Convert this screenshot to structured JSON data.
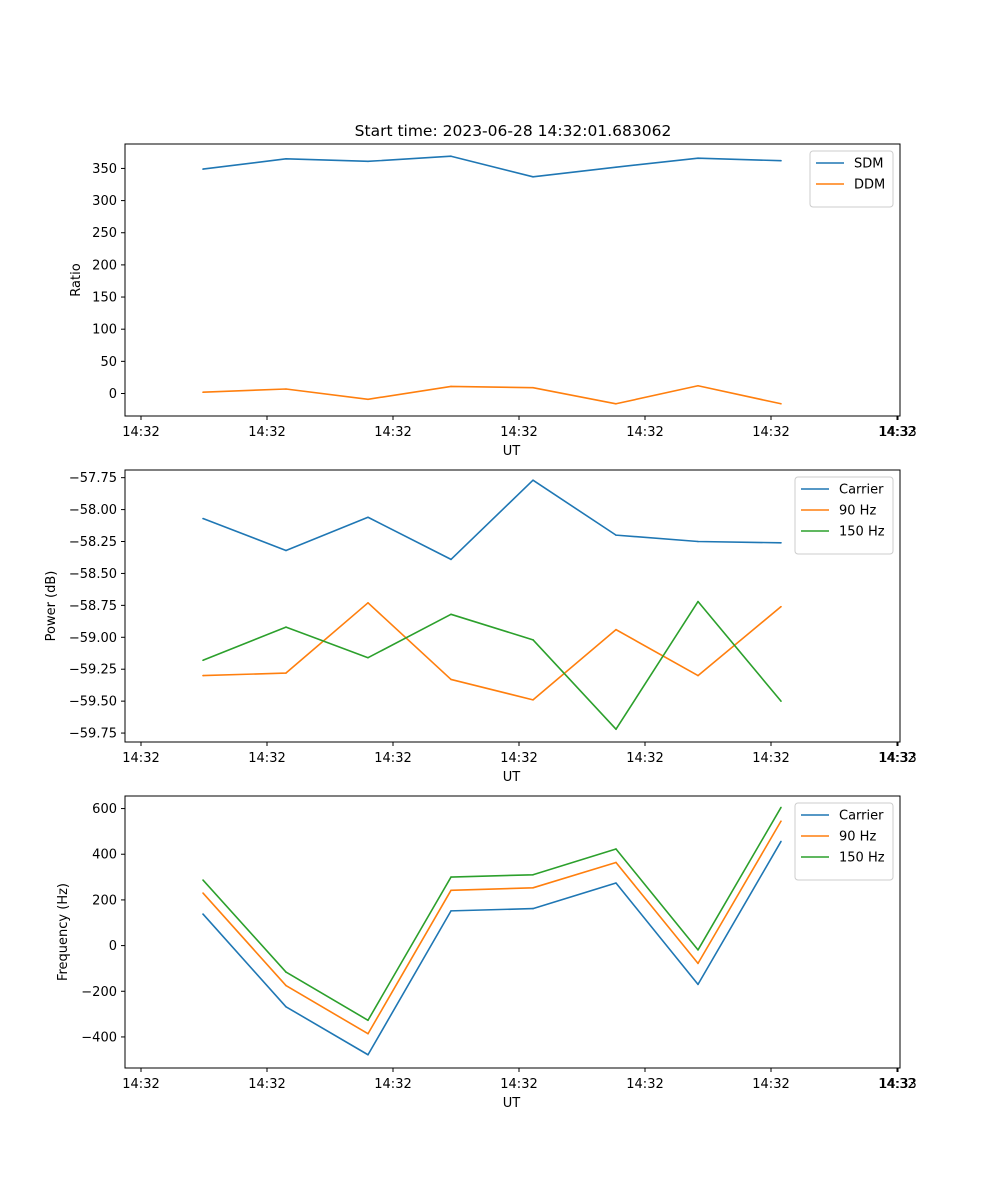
{
  "figure": {
    "title": "Start time: 2023-06-28 14:32:01.683062"
  },
  "chart_data": [
    {
      "type": "line",
      "xlabel": "UT",
      "ylabel": "Ratio",
      "x_tick_labels": [
        "14:32",
        "14:32",
        "14:32",
        "14:32",
        "14:32",
        "14:32",
        "14:32",
        "14:33"
      ],
      "y_ticks": [
        0,
        50,
        100,
        150,
        200,
        250,
        300,
        350
      ],
      "ylim": [
        -35,
        388
      ],
      "legend_position": "upper right",
      "series": [
        {
          "name": "SDM",
          "color": "#1f77b4",
          "values": [
            349,
            365,
            361,
            369,
            337,
            352,
            366,
            362
          ]
        },
        {
          "name": "DDM",
          "color": "#ff7f0e",
          "values": [
            2,
            7,
            -9,
            11,
            9,
            -16,
            12,
            -16
          ]
        }
      ]
    },
    {
      "type": "line",
      "xlabel": "UT",
      "ylabel": "Power (dB)",
      "x_tick_labels": [
        "14:32",
        "14:32",
        "14:32",
        "14:32",
        "14:32",
        "14:32",
        "14:32",
        "14:33"
      ],
      "y_ticks": [
        -59.75,
        -59.5,
        -59.25,
        -59.0,
        -58.75,
        -58.5,
        -58.25,
        -58.0,
        -57.75
      ],
      "y_tick_labels": [
        "−59.75",
        "−59.50",
        "−59.25",
        "−59.00",
        "−58.75",
        "−58.50",
        "−58.25",
        "−58.00",
        "−57.75"
      ],
      "ylim": [
        -59.82,
        -57.69
      ],
      "legend_position": "upper right",
      "series": [
        {
          "name": "Carrier",
          "color": "#1f77b4",
          "values": [
            -58.07,
            -58.32,
            -58.06,
            -58.39,
            -57.77,
            -58.2,
            -58.25,
            -58.26
          ]
        },
        {
          "name": "90 Hz",
          "color": "#ff7f0e",
          "values": [
            -59.3,
            -59.28,
            -58.73,
            -59.33,
            -59.49,
            -58.94,
            -59.3,
            -58.76
          ]
        },
        {
          "name": "150 Hz",
          "color": "#2ca02c",
          "values": [
            -59.18,
            -58.92,
            -59.16,
            -58.82,
            -59.02,
            -59.72,
            -58.72,
            -59.5
          ]
        }
      ]
    },
    {
      "type": "line",
      "xlabel": "UT",
      "ylabel": "Frequency (Hz)",
      "x_tick_labels": [
        "14:32",
        "14:32",
        "14:32",
        "14:32",
        "14:32",
        "14:32",
        "14:32",
        "14:33"
      ],
      "y_ticks": [
        -400,
        -200,
        0,
        200,
        400,
        600
      ],
      "y_tick_labels": [
        "−400",
        "−200",
        "0",
        "200",
        "400",
        "600"
      ],
      "ylim": [
        -536,
        655
      ],
      "legend_position": "upper right",
      "series": [
        {
          "name": "Carrier",
          "color": "#1f77b4",
          "values": [
            138,
            -268,
            -478,
            152,
            162,
            274,
            -170,
            456
          ]
        },
        {
          "name": "90 Hz",
          "color": "#ff7f0e",
          "values": [
            230,
            -175,
            -386,
            242,
            253,
            364,
            -78,
            545
          ]
        },
        {
          "name": "150 Hz",
          "color": "#2ca02c",
          "values": [
            287,
            -116,
            -327,
            300,
            310,
            423,
            -19,
            605
          ]
        }
      ]
    }
  ]
}
